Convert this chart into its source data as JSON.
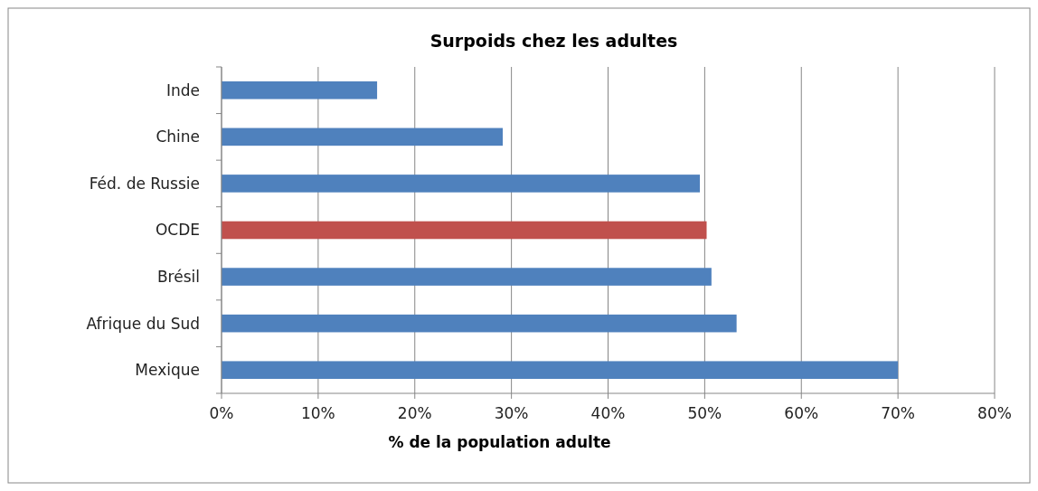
{
  "chart_data": {
    "type": "bar",
    "orientation": "horizontal",
    "title": "Surpoids chez les adultes",
    "xlabel": "% de la population adulte",
    "categories": [
      "Inde",
      "Chine",
      "Féd. de Russie",
      "OCDE",
      "Brésil",
      "Afrique du Sud",
      "Mexique"
    ],
    "values": [
      16.1,
      29.1,
      49.5,
      50.2,
      50.7,
      53.3,
      70.0
    ],
    "colors": [
      "#4f81bd",
      "#4f81bd",
      "#4f81bd",
      "#c0504d",
      "#4f81bd",
      "#4f81bd",
      "#4f81bd"
    ],
    "xlim": [
      0,
      80
    ],
    "xticks": [
      {
        "value": 0,
        "label": "0%"
      },
      {
        "value": 10,
        "label": "10%"
      },
      {
        "value": 20,
        "label": "20%"
      },
      {
        "value": 30,
        "label": "30%"
      },
      {
        "value": 40,
        "label": "40%"
      },
      {
        "value": 50,
        "label": "50%"
      },
      {
        "value": 60,
        "label": "60%"
      },
      {
        "value": 70,
        "label": "70%"
      },
      {
        "value": 80,
        "label": "80%"
      }
    ],
    "grid": "x"
  }
}
